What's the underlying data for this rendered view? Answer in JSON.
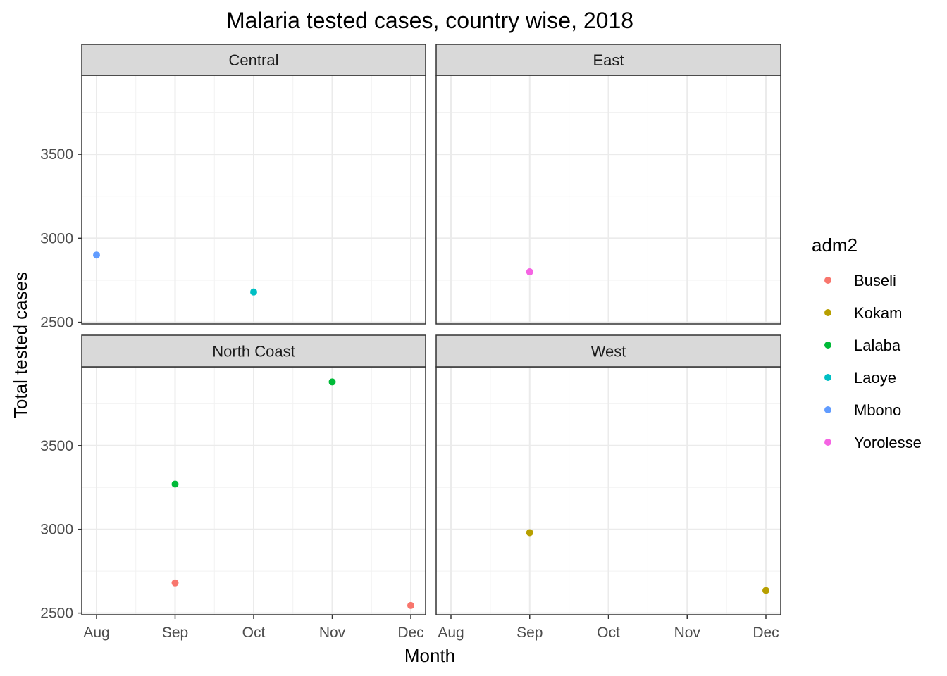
{
  "title": "Malaria tested cases, country wise, 2018",
  "xlabel": "Month",
  "ylabel": "Total tested cases",
  "legend": {
    "title": "adm2",
    "items": [
      {
        "name": "Buseli",
        "color": "#F8766D"
      },
      {
        "name": "Kokam",
        "color": "#B79F00"
      },
      {
        "name": "Lalaba",
        "color": "#00BA38"
      },
      {
        "name": "Laoye",
        "color": "#00BFC4"
      },
      {
        "name": "Mbono",
        "color": "#619CFF"
      },
      {
        "name": "Yorolesse",
        "color": "#F564E3"
      }
    ]
  },
  "chart_data": {
    "type": "scatter",
    "title": "Malaria tested cases, country wise, 2018",
    "xlabel": "Month",
    "ylabel": "Total tested cases",
    "x_categories": [
      "Aug",
      "Sep",
      "Oct",
      "Nov",
      "Dec"
    ],
    "y_ticks": [
      2500,
      3000,
      3500
    ],
    "ylim": [
      2490,
      3970
    ],
    "grid": true,
    "legend_position": "right",
    "facets": [
      {
        "name": "Central",
        "points": [
          {
            "month": "Aug",
            "value": 2900,
            "adm2": "Mbono"
          },
          {
            "month": "Oct",
            "value": 2680,
            "adm2": "Laoye"
          }
        ]
      },
      {
        "name": "East",
        "points": [
          {
            "month": "Sep",
            "value": 2800,
            "adm2": "Yorolesse"
          }
        ]
      },
      {
        "name": "North Coast",
        "points": [
          {
            "month": "Sep",
            "value": 2680,
            "adm2": "Buseli"
          },
          {
            "month": "Sep",
            "value": 3270,
            "adm2": "Lalaba"
          },
          {
            "month": "Nov",
            "value": 3880,
            "adm2": "Lalaba"
          },
          {
            "month": "Dec",
            "value": 2545,
            "adm2": "Buseli"
          }
        ]
      },
      {
        "name": "West",
        "points": [
          {
            "month": "Sep",
            "value": 2980,
            "adm2": "Kokam"
          },
          {
            "month": "Dec",
            "value": 2635,
            "adm2": "Kokam"
          }
        ]
      }
    ]
  }
}
